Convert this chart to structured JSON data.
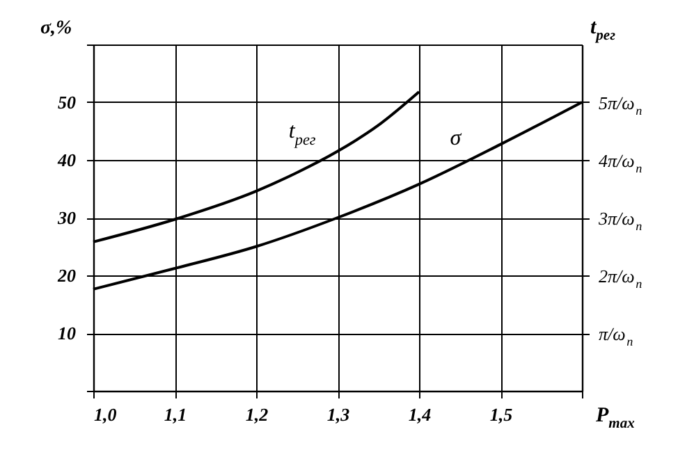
{
  "chart_data": {
    "type": "line",
    "xlabel": "P$_{max}$",
    "ylabel": "σ,%",
    "y2label": "t$_{рег}$",
    "series": [
      {
        "name": "t$_{рег}$",
        "color": "#000000",
        "axis": "y2",
        "x": [
          1.0,
          1.1,
          1.2,
          1.25,
          1.3,
          1.35,
          1.4
        ],
        "values": [
          2.58,
          2.97,
          3.46,
          3.78,
          4.15,
          4.6,
          5.18
        ]
      },
      {
        "name": "σ",
        "color": "#000000",
        "x": [
          1.0,
          1.1,
          1.2,
          1.3,
          1.4,
          1.5,
          1.6
        ],
        "values": [
          17.6,
          21.2,
          25,
          30,
          35.8,
          42.7,
          50
        ]
      }
    ],
    "xlim": [
      1.0,
      1.6
    ],
    "xticks": [
      {
        "value": 1.0,
        "label": "1,0"
      },
      {
        "value": 1.1,
        "label": "1,1"
      },
      {
        "value": 1.2,
        "label": "1,2"
      },
      {
        "value": 1.3,
        "label": "1,3"
      },
      {
        "value": 1.4,
        "label": "1,4"
      },
      {
        "value": 1.5,
        "label": "1,5"
      },
      {
        "value": 1.6,
        "label": null
      }
    ],
    "ylim": [
      0,
      60
    ],
    "yticks": [
      {
        "value": 0,
        "label": null
      },
      10,
      20,
      30,
      40,
      50,
      {
        "value": 60,
        "label": null
      }
    ],
    "y2lim": [
      0,
      6
    ],
    "y2ticks": [
      {
        "value": 1,
        "label": "π/ω$_{п}$"
      },
      {
        "value": 2,
        "label": "2π/ω$_{п}$"
      },
      {
        "value": 3,
        "label": "3π/ω$_{п}$"
      },
      {
        "value": 4,
        "label": "4π/ω$_{п}$"
      },
      {
        "value": 5,
        "label": "5π/ω$_{п}$"
      }
    ],
    "grid": true,
    "marker": "none",
    "line_style": "solid"
  }
}
